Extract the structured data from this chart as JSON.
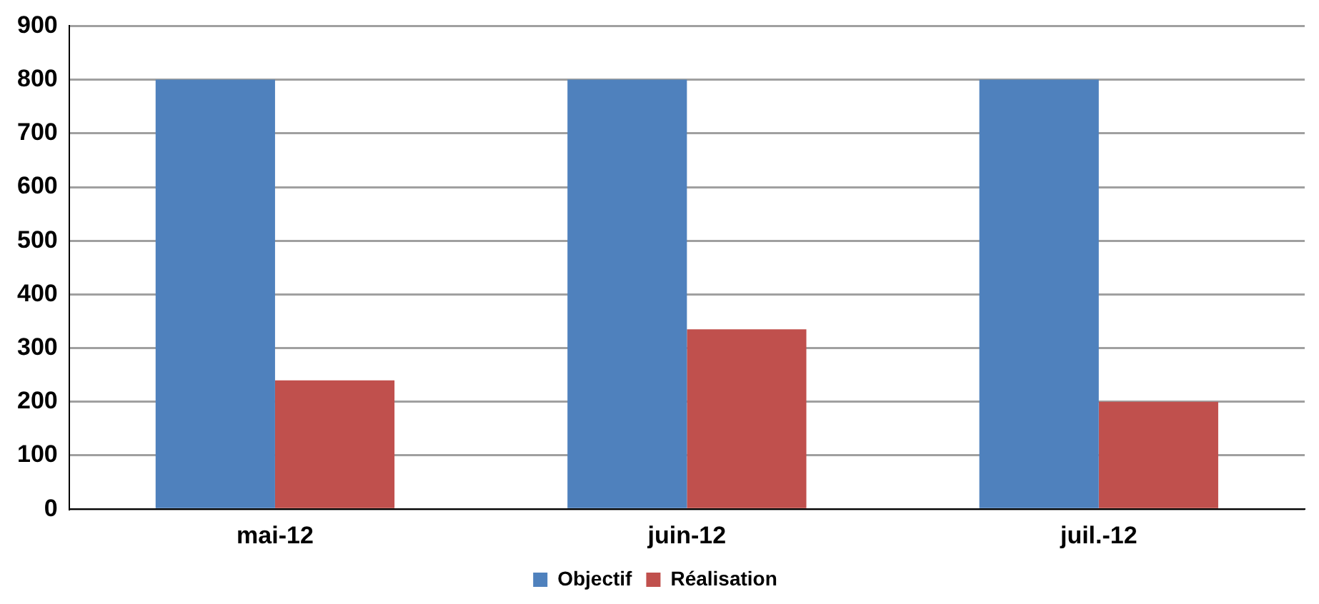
{
  "chart_data": {
    "type": "bar",
    "categories": [
      "mai-12",
      "juin-12",
      "juil.-12"
    ],
    "series": [
      {
        "name": "Objectif",
        "color": "#4f81bd",
        "values": [
          800,
          800,
          800
        ]
      },
      {
        "name": "Réalisation",
        "color": "#c0504d",
        "values": [
          240,
          335,
          200
        ]
      }
    ],
    "ylim": [
      0,
      900
    ],
    "yticks": [
      0,
      100,
      200,
      300,
      400,
      500,
      600,
      700,
      800,
      900
    ],
    "grid": "y",
    "legend": "bottom"
  }
}
